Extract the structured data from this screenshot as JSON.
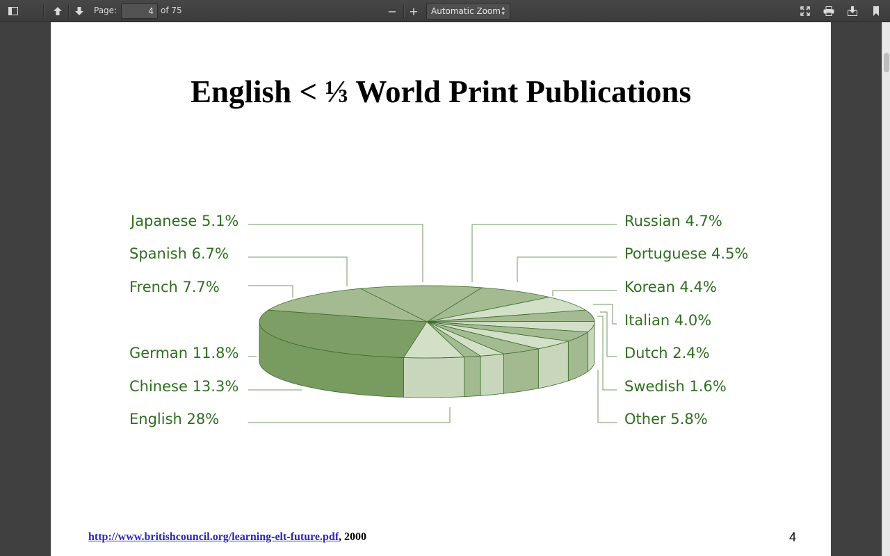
{
  "toolbar": {
    "page_label": "Page:",
    "page_number": "4",
    "page_count": "of 75",
    "zoom": "Automatic Zoom",
    "zoom_out": "−",
    "zoom_in": "+"
  },
  "slide": {
    "title": "English < ⅓ World Print Publications",
    "footer_link": "http://www.britishcouncil.org/learning-elt-future.pdf",
    "footer_suffix": ", 2000",
    "page_num": "4"
  },
  "chart_data": {
    "type": "pie",
    "title": "English < ⅓ World Print Publications",
    "slices": [
      {
        "name": "English",
        "value": 28,
        "label": "English 28%"
      },
      {
        "name": "Chinese",
        "value": 13.3,
        "label": "Chinese 13.3%"
      },
      {
        "name": "German",
        "value": 11.8,
        "label": "German 11.8%"
      },
      {
        "name": "French",
        "value": 7.7,
        "label": "French 7.7%"
      },
      {
        "name": "Spanish",
        "value": 6.7,
        "label": "Spanish 6.7%"
      },
      {
        "name": "Japanese",
        "value": 5.1,
        "label": "Japanese 5.1%"
      },
      {
        "name": "Russian",
        "value": 4.7,
        "label": "Russian 4.7%"
      },
      {
        "name": "Portuguese",
        "value": 4.5,
        "label": "Portuguese 4.5%"
      },
      {
        "name": "Korean",
        "value": 4.4,
        "label": "Korean 4.4%"
      },
      {
        "name": "Italian",
        "value": 4.0,
        "label": "Italian 4.0%"
      },
      {
        "name": "Dutch",
        "value": 2.4,
        "label": "Dutch 2.4%"
      },
      {
        "name": "Swedish",
        "value": 1.6,
        "label": "Swedish 1.6%"
      },
      {
        "name": "Other",
        "value": 5.8,
        "label": "Other 5.8%"
      }
    ]
  },
  "colors": {
    "slice_dark": "#7d9f66",
    "slice_mid": "#a4bb92",
    "slice_light": "#d3e0c8",
    "outline": "#3d6b2c",
    "label": "#2e6e1e"
  }
}
